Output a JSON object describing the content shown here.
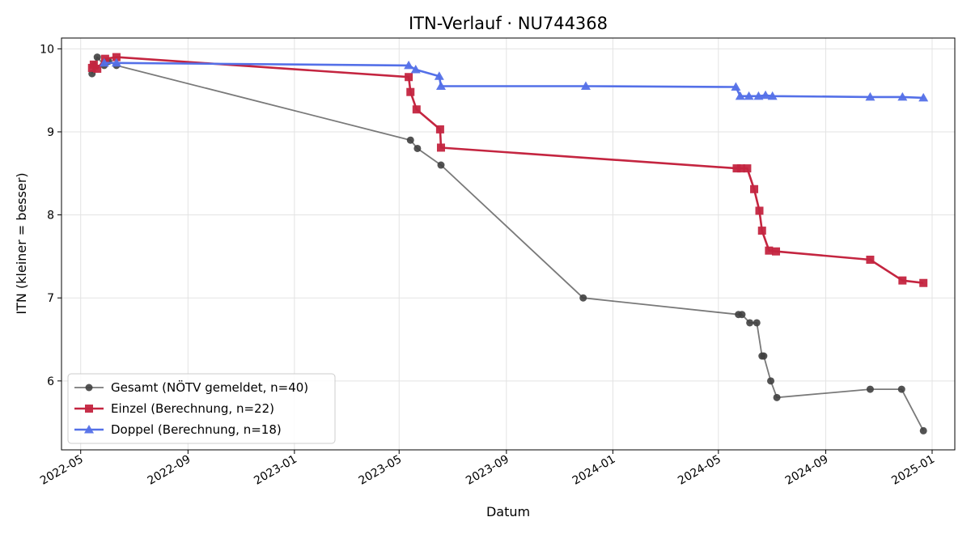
{
  "chart_data": {
    "type": "line",
    "title": "ITN-Verlauf · NU744368",
    "xlabel": "Datum",
    "ylabel": "ITN  (kleiner = besser)",
    "x_ticks": [
      "2022-05",
      "2022-09",
      "2023-01",
      "2023-05",
      "2023-09",
      "2024-01",
      "2024-05",
      "2024-09",
      "2025-01"
    ],
    "y_ticks": [
      6,
      7,
      8,
      9,
      10
    ],
    "xlim": [
      "2022-04-09",
      "2025-01-27"
    ],
    "ylim": [
      5.17,
      10.13
    ],
    "grid": true,
    "legend_position": "lower-left",
    "series": [
      {
        "name": "Gesamt (NÖTV gemeldet, n=40)",
        "color": "#404040",
        "marker": "circle",
        "points": [
          [
            "2022-05-14",
            9.7
          ],
          [
            "2022-05-16",
            9.8
          ],
          [
            "2022-05-20",
            9.9
          ],
          [
            "2022-05-28",
            9.8
          ],
          [
            "2022-06-02",
            9.85
          ],
          [
            "2022-06-11",
            9.8
          ],
          [
            "2023-05-14",
            8.9
          ],
          [
            "2023-05-22",
            8.8
          ],
          [
            "2023-06-18",
            8.6
          ],
          [
            "2023-11-28",
            7.0
          ],
          [
            "2024-05-24",
            6.8
          ],
          [
            "2024-05-28",
            6.8
          ],
          [
            "2024-06-06",
            6.7
          ],
          [
            "2024-06-14",
            6.7
          ],
          [
            "2024-06-20",
            6.3
          ],
          [
            "2024-06-22",
            6.3
          ],
          [
            "2024-06-30",
            6.0
          ],
          [
            "2024-07-07",
            5.8
          ],
          [
            "2024-10-22",
            5.9
          ],
          [
            "2024-11-27",
            5.9
          ],
          [
            "2024-12-22",
            5.4
          ]
        ]
      },
      {
        "name": "Einzel (Berechnung, n=22)",
        "color": "#c42540",
        "marker": "square",
        "points": [
          [
            "2022-05-14",
            9.77
          ],
          [
            "2022-05-16",
            9.81
          ],
          [
            "2022-05-20",
            9.76
          ],
          [
            "2022-05-29",
            9.88
          ],
          [
            "2022-06-11",
            9.9
          ],
          [
            "2023-05-12",
            9.66
          ],
          [
            "2023-05-14",
            9.48
          ],
          [
            "2023-05-21",
            9.27
          ],
          [
            "2023-06-17",
            9.03
          ],
          [
            "2023-06-18",
            8.81
          ],
          [
            "2024-05-22",
            8.56
          ],
          [
            "2024-05-27",
            8.56
          ],
          [
            "2024-06-03",
            8.56
          ],
          [
            "2024-06-11",
            8.31
          ],
          [
            "2024-06-17",
            8.05
          ],
          [
            "2024-06-20",
            7.81
          ],
          [
            "2024-06-28",
            7.57
          ],
          [
            "2024-07-06",
            7.56
          ],
          [
            "2024-10-22",
            7.46
          ],
          [
            "2024-11-28",
            7.21
          ],
          [
            "2024-12-22",
            7.18
          ]
        ]
      },
      {
        "name": "Doppel (Berechnung, n=18)",
        "color": "#5470e8",
        "marker": "triangle",
        "points": [
          [
            "2022-05-28",
            9.83
          ],
          [
            "2022-06-11",
            9.83
          ],
          [
            "2023-05-12",
            9.8
          ],
          [
            "2023-05-20",
            9.75
          ],
          [
            "2023-06-16",
            9.67
          ],
          [
            "2023-06-18",
            9.55
          ],
          [
            "2023-12-01",
            9.55
          ],
          [
            "2024-05-21",
            9.54
          ],
          [
            "2024-05-26",
            9.43
          ],
          [
            "2024-06-05",
            9.43
          ],
          [
            "2024-06-16",
            9.43
          ],
          [
            "2024-06-24",
            9.44
          ],
          [
            "2024-07-02",
            9.43
          ],
          [
            "2024-10-22",
            9.42
          ],
          [
            "2024-11-28",
            9.42
          ],
          [
            "2024-12-22",
            9.41
          ]
        ]
      }
    ]
  }
}
